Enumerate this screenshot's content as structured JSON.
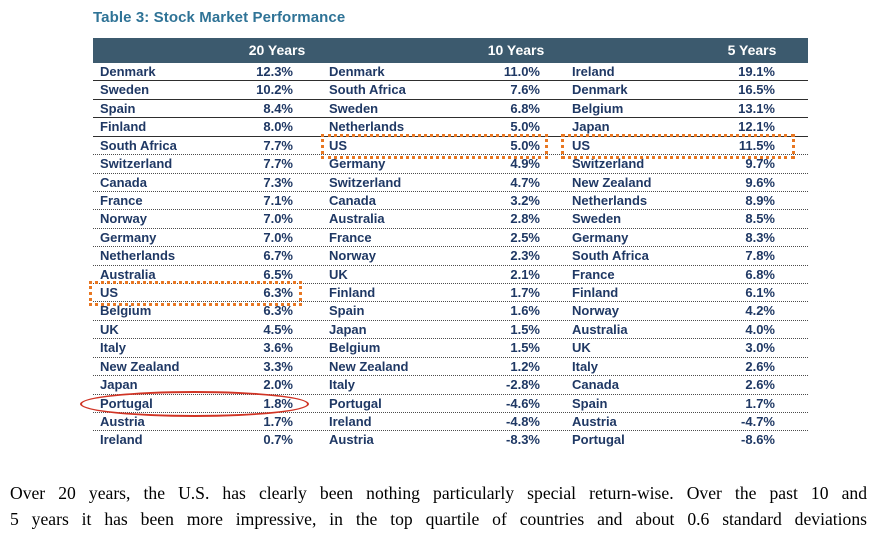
{
  "title": "Table 3: Stock Market Performance",
  "table": {
    "columns": [
      {
        "label": "20 Years",
        "rows": [
          {
            "country": "Denmark",
            "value": "12.3%"
          },
          {
            "country": "Sweden",
            "value": "10.2%"
          },
          {
            "country": "Spain",
            "value": "8.4%"
          },
          {
            "country": "Finland",
            "value": "8.0%"
          },
          {
            "country": "South Africa",
            "value": "7.7%"
          },
          {
            "country": "Switzerland",
            "value": "7.7%"
          },
          {
            "country": "Canada",
            "value": "7.3%"
          },
          {
            "country": "France",
            "value": "7.1%"
          },
          {
            "country": "Norway",
            "value": "7.0%"
          },
          {
            "country": "Germany",
            "value": "7.0%"
          },
          {
            "country": "Netherlands",
            "value": "6.7%"
          },
          {
            "country": "Australia",
            "value": "6.5%"
          },
          {
            "country": "US",
            "value": "6.3%"
          },
          {
            "country": "Belgium",
            "value": "6.3%"
          },
          {
            "country": "UK",
            "value": "4.5%"
          },
          {
            "country": "Italy",
            "value": "3.6%"
          },
          {
            "country": "New Zealand",
            "value": "3.3%"
          },
          {
            "country": "Japan",
            "value": "2.0%"
          },
          {
            "country": "Portugal",
            "value": "1.8%"
          },
          {
            "country": "Austria",
            "value": "1.7%"
          },
          {
            "country": "Ireland",
            "value": "0.7%"
          }
        ]
      },
      {
        "label": "10 Years",
        "rows": [
          {
            "country": "Denmark",
            "value": "11.0%"
          },
          {
            "country": "South Africa",
            "value": "7.6%"
          },
          {
            "country": "Sweden",
            "value": "6.8%"
          },
          {
            "country": "Netherlands",
            "value": "5.0%"
          },
          {
            "country": "US",
            "value": "5.0%"
          },
          {
            "country": "Germany",
            "value": "4.9%"
          },
          {
            "country": "Switzerland",
            "value": "4.7%"
          },
          {
            "country": "Canada",
            "value": "3.2%"
          },
          {
            "country": "Australia",
            "value": "2.8%"
          },
          {
            "country": "France",
            "value": "2.5%"
          },
          {
            "country": "Norway",
            "value": "2.3%"
          },
          {
            "country": "UK",
            "value": "2.1%"
          },
          {
            "country": "Finland",
            "value": "1.7%"
          },
          {
            "country": "Spain",
            "value": "1.6%"
          },
          {
            "country": "Japan",
            "value": "1.5%"
          },
          {
            "country": "Belgium",
            "value": "1.5%"
          },
          {
            "country": "New Zealand",
            "value": "1.2%"
          },
          {
            "country": "Italy",
            "value": "-2.8%"
          },
          {
            "country": "Portugal",
            "value": "-4.6%"
          },
          {
            "country": "Ireland",
            "value": "-4.8%"
          },
          {
            "country": "Austria",
            "value": "-8.3%"
          }
        ]
      },
      {
        "label": "5 Years",
        "rows": [
          {
            "country": "Ireland",
            "value": "19.1%"
          },
          {
            "country": "Denmark",
            "value": "16.5%"
          },
          {
            "country": "Belgium",
            "value": "13.1%"
          },
          {
            "country": "Japan",
            "value": "12.1%"
          },
          {
            "country": "US",
            "value": "11.5%"
          },
          {
            "country": "Switzerland",
            "value": "9.7%"
          },
          {
            "country": "New Zealand",
            "value": "9.6%"
          },
          {
            "country": "Netherlands",
            "value": "8.9%"
          },
          {
            "country": "Sweden",
            "value": "8.5%"
          },
          {
            "country": "Germany",
            "value": "8.3%"
          },
          {
            "country": "South Africa",
            "value": "7.8%"
          },
          {
            "country": "France",
            "value": "6.8%"
          },
          {
            "country": "Finland",
            "value": "6.1%"
          },
          {
            "country": "Norway",
            "value": "4.2%"
          },
          {
            "country": "Australia",
            "value": "4.0%"
          },
          {
            "country": "UK",
            "value": "3.0%"
          },
          {
            "country": "Italy",
            "value": "2.6%"
          },
          {
            "country": "Canada",
            "value": "2.6%"
          },
          {
            "country": "Spain",
            "value": "1.7%"
          },
          {
            "country": "Austria",
            "value": "-4.7%"
          },
          {
            "country": "Portugal",
            "value": "-8.6%"
          }
        ]
      }
    ]
  },
  "annotations": {
    "highlights": [
      {
        "column": "20 Years",
        "country": "US",
        "type": "orange-dotted-box"
      },
      {
        "column": "10 Years",
        "country": "US",
        "type": "orange-dotted-box"
      },
      {
        "column": "5 Years",
        "country": "US",
        "type": "orange-dotted-box"
      },
      {
        "column": "20 Years",
        "country": "Portugal",
        "type": "red-ellipse"
      }
    ]
  },
  "footer": {
    "line1": "Over 20 years, the U.S. has clearly been nothing particularly special return-wise. Over the past 10 and",
    "line2": "5 years it has been more impressive, in the top quartile of countries and about 0.6 standard deviations"
  },
  "colors": {
    "title": "#2F7396",
    "header_bg": "#3C5A6E",
    "row_text": "#1F3864",
    "orange_highlight": "#E87722",
    "red_annotation": "#D03425"
  }
}
